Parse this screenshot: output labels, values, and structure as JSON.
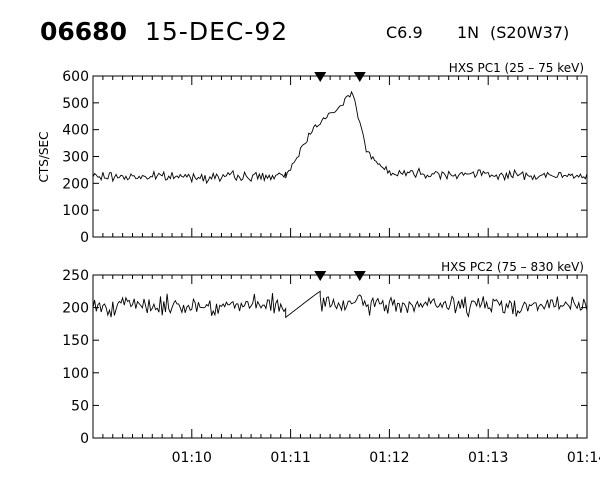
{
  "header": {
    "event_id": "06680",
    "date": "15-DEC-92",
    "flare_class": "C6.9",
    "importance": "1N",
    "location": "(S20W37)"
  },
  "chart_data": [
    {
      "type": "line",
      "title": "HXS PC1 (25 – 75 keV)",
      "ylabel": "CTS/SEC",
      "ylim": [
        0,
        600
      ],
      "yticks": [
        0,
        100,
        200,
        300,
        400,
        500,
        600
      ],
      "xlim": [
        "01:09:00",
        "01:14:00"
      ],
      "xticks": [
        "01:10",
        "01:11",
        "01:12",
        "01:13",
        "01:14"
      ],
      "markers": [
        "01:11:18",
        "01:11:42"
      ],
      "baseline": 225,
      "noise": 16,
      "segments": [
        {
          "x": [
            "01:09:00",
            "01:10:57"
          ],
          "y": [
            225,
            225
          ]
        },
        {
          "x": [
            "01:10:57",
            "01:11:15",
            "01:11:24",
            "01:11:30",
            "01:11:33",
            "01:11:37",
            "01:11:39",
            "01:11:41",
            "01:11:43",
            "01:11:46",
            "01:11:49",
            "01:11:54",
            "01:12:00"
          ],
          "y": [
            225,
            420,
            455,
            480,
            510,
            540,
            520,
            450,
            400,
            330,
            295,
            270,
            248
          ],
          "noise": 12
        },
        {
          "x": [
            "01:12:00",
            "01:14:00"
          ],
          "y": [
            240,
            225
          ]
        }
      ]
    },
    {
      "type": "line",
      "title": "HXS PC2 (75 – 830 keV)",
      "ylabel": "",
      "ylim": [
        0,
        250
      ],
      "yticks": [
        0,
        50,
        100,
        150,
        200,
        250
      ],
      "xlim": [
        "01:09:00",
        "01:14:00"
      ],
      "xticks": [
        "01:10",
        "01:11",
        "01:12",
        "01:13",
        "01:14"
      ],
      "markers": [
        "01:11:18",
        "01:11:42"
      ],
      "baseline": 203,
      "noise": 13,
      "segments": [
        {
          "x": [
            "01:09:00",
            "01:10:57"
          ],
          "y": [
            203,
            203
          ]
        },
        {
          "x": [
            "01:10:57",
            "01:11:15",
            "01:11:18"
          ],
          "y": [
            185,
            220,
            225
          ],
          "noise": 0
        },
        {
          "x": [
            "01:11:18",
            "01:14:00"
          ],
          "y": [
            205,
            203
          ]
        }
      ]
    }
  ]
}
